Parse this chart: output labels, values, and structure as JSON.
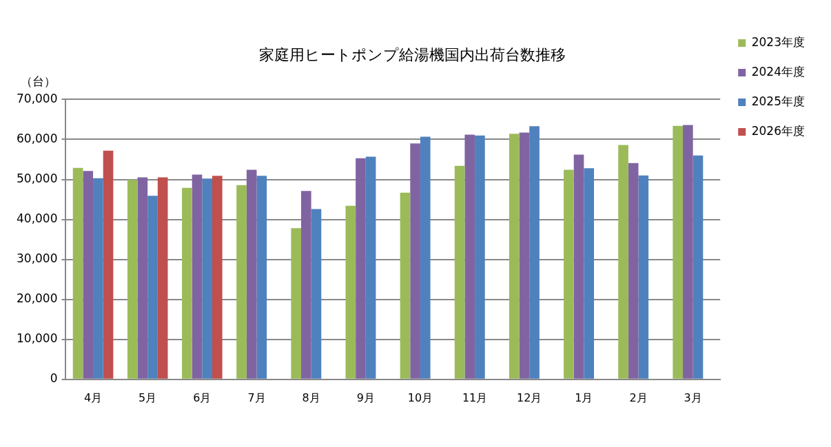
{
  "chart_data": {
    "type": "bar",
    "title": "家庭用ヒートポンプ給湯機国内出荷台数推移",
    "ylabel": "（台）",
    "categories": [
      "4月",
      "5月",
      "6月",
      "7月",
      "8月",
      "9月",
      "10月",
      "11月",
      "12月",
      "1月",
      "2月",
      "3月"
    ],
    "series": [
      {
        "name": "2023年度",
        "color": "#9bbb59",
        "values": [
          52900,
          49900,
          47900,
          48600,
          37800,
          43400,
          46700,
          53400,
          61400,
          52400,
          58600,
          63400
        ]
      },
      {
        "name": "2024年度",
        "color": "#8064a2",
        "values": [
          52100,
          50500,
          51200,
          52400,
          47100,
          55300,
          59000,
          61200,
          61700,
          56200,
          54100,
          63600
        ]
      },
      {
        "name": "2025年度",
        "color": "#4f81bd",
        "values": [
          50300,
          45900,
          50200,
          50900,
          42600,
          55700,
          60700,
          61000,
          63300,
          52800,
          51000,
          56000
        ]
      },
      {
        "name": "2026年度",
        "color": "#c0504d",
        "values": [
          57200,
          50500,
          50900,
          null,
          null,
          null,
          null,
          null,
          null,
          null,
          null,
          null
        ]
      }
    ],
    "ylim": [
      0,
      70000
    ],
    "yticks": [
      {
        "value": 0,
        "label": "0"
      },
      {
        "value": 10000,
        "label": "10,000"
      },
      {
        "value": 20000,
        "label": "20,000"
      },
      {
        "value": 30000,
        "label": "30,000"
      },
      {
        "value": 40000,
        "label": "40,000"
      },
      {
        "value": 50000,
        "label": "50,000"
      },
      {
        "value": 60000,
        "label": "60,000"
      },
      {
        "value": 70000,
        "label": "70,000"
      }
    ],
    "grid": "y",
    "legend": "right"
  }
}
